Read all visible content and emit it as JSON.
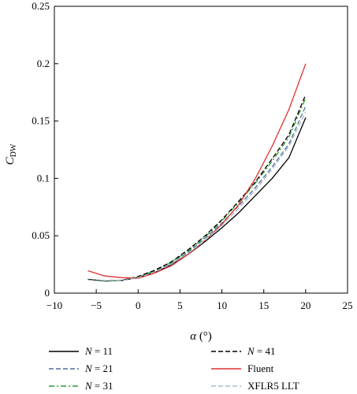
{
  "chart_data": {
    "type": "line",
    "xlabel": "α (°)",
    "ylabel_main": "C",
    "ylabel_sub": "DW",
    "xlim": [
      -10,
      25
    ],
    "ylim": [
      0,
      0.25
    ],
    "xticks": [
      -10,
      -5,
      0,
      5,
      10,
      15,
      20,
      25
    ],
    "yticks": [
      0,
      0.05,
      0.1,
      0.15,
      0.2,
      0.25
    ],
    "xtick_labels": [
      "−10",
      "−5",
      "0",
      "5",
      "10",
      "15",
      "20",
      "25"
    ],
    "ytick_labels": [
      "0",
      "0.05",
      "0.1",
      "0.15",
      "0.2",
      "0.25"
    ],
    "grid": false,
    "legend_position": "bottom",
    "series": [
      {
        "name": "N = 11",
        "legend_var": "N",
        "legend_rest": " = 11",
        "color": "#000000",
        "dash": "solid",
        "x": [
          -6,
          -4,
          -2,
          0,
          2,
          4,
          6,
          8,
          10,
          12,
          14,
          16,
          18,
          20
        ],
        "y": [
          0.012,
          0.0105,
          0.011,
          0.0135,
          0.018,
          0.025,
          0.034,
          0.045,
          0.057,
          0.07,
          0.085,
          0.1,
          0.118,
          0.153
        ]
      },
      {
        "name": "N = 21",
        "legend_var": "N",
        "legend_rest": " = 21",
        "color": "#4e6f9e",
        "dash": "dash",
        "x": [
          -6,
          -4,
          -2,
          0,
          2,
          4,
          6,
          8,
          10,
          12,
          14,
          16,
          18,
          20
        ],
        "y": [
          0.012,
          0.0105,
          0.011,
          0.014,
          0.019,
          0.026,
          0.036,
          0.048,
          0.061,
          0.076,
          0.092,
          0.11,
          0.13,
          0.163
        ]
      },
      {
        "name": "N = 31",
        "legend_var": "N",
        "legend_rest": " = 31",
        "color": "#2e9e2e",
        "dash": "dashdot",
        "x": [
          -6,
          -4,
          -2,
          0,
          2,
          4,
          6,
          8,
          10,
          12,
          14,
          16,
          18,
          20
        ],
        "y": [
          0.012,
          0.0105,
          0.011,
          0.014,
          0.0195,
          0.027,
          0.037,
          0.049,
          0.063,
          0.079,
          0.096,
          0.115,
          0.136,
          0.17
        ]
      },
      {
        "name": "N = 41",
        "legend_var": "N",
        "legend_rest": " = 41",
        "color": "#000000",
        "dash": "dash",
        "x": [
          -6,
          -4,
          -2,
          0,
          2,
          4,
          6,
          8,
          10,
          12,
          14,
          16,
          18,
          20
        ],
        "y": [
          0.012,
          0.0105,
          0.011,
          0.0145,
          0.02,
          0.0275,
          0.038,
          0.05,
          0.064,
          0.08,
          0.097,
          0.117,
          0.138,
          0.173
        ]
      },
      {
        "name": "Fluent",
        "legend_var": "",
        "legend_rest": "Fluent",
        "color": "#e03030",
        "dash": "solid",
        "x": [
          -6,
          -4,
          -2,
          0,
          2,
          4,
          6,
          8,
          10,
          12,
          14,
          16,
          18,
          20
        ],
        "y": [
          0.0195,
          0.015,
          0.0135,
          0.013,
          0.0175,
          0.024,
          0.034,
          0.046,
          0.06,
          0.077,
          0.1,
          0.128,
          0.16,
          0.2
        ]
      },
      {
        "name": "XFLR5 LLT",
        "legend_var": "",
        "legend_rest": "XFLR5 LLT",
        "color": "#a8b8cc",
        "dash": "dash",
        "x": [
          -6,
          -4,
          -2,
          0,
          2,
          4,
          6,
          8,
          10,
          12,
          14,
          16,
          18,
          20
        ],
        "y": [
          0.0115,
          0.0102,
          0.0108,
          0.0135,
          0.0185,
          0.0255,
          0.035,
          0.046,
          0.059,
          0.074,
          0.09,
          0.108,
          0.128,
          0.158
        ]
      }
    ]
  }
}
